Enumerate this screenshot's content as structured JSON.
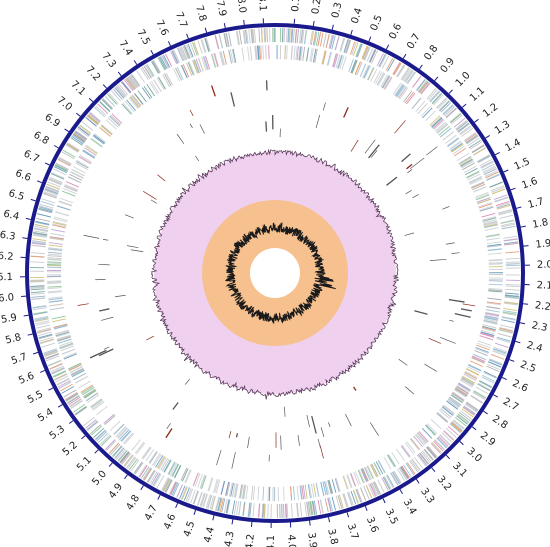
{
  "genome_map": {
    "scale_labels": [
      "0.1",
      "0.2",
      "0.3",
      "0.4",
      "0.5",
      "0.6",
      "0.7",
      "0.8",
      "0.9",
      "1.0",
      "1.1",
      "1.2",
      "1.3",
      "1.4",
      "1.5",
      "1.6",
      "1.7",
      "1.8",
      "1.9",
      "2.0",
      "2.1",
      "2.2",
      "2.3",
      "2.4",
      "2.5",
      "2.6",
      "2.7",
      "2.8",
      "2.9",
      "3.0",
      "3.1",
      "3.2",
      "3.3",
      "3.4",
      "3.5",
      "3.6",
      "3.7",
      "3.8",
      "3.9",
      "4.0",
      "4.1",
      "4.2",
      "4.3",
      "4.4",
      "4.5",
      "4.6",
      "4.7",
      "4.8",
      "4.9",
      "5.0",
      "5.1",
      "5.2",
      "5.3",
      "5.4",
      "5.5",
      "5.6",
      "5.7",
      "5.8",
      "5.9",
      "6.0",
      "6.1",
      "6.2",
      "6.3",
      "6.4",
      "6.5",
      "6.6",
      "6.7",
      "6.8",
      "6.9",
      "7.0",
      "7.1",
      "7.2",
      "7.3",
      "7.4",
      "7.5",
      "7.6",
      "7.7",
      "7.8",
      "7.9",
      "8.0",
      "8.1"
    ],
    "genome_length_mb": 8.16,
    "colors": {
      "backbone": "#1a1a8c",
      "gc_content_band": "#f0d0ef",
      "gc_skew_band": "#f6c08f",
      "trace": "#1a1a1a",
      "rna": "#8b2a1a",
      "feature_palette": [
        "#9fb3c8",
        "#7fb6d6",
        "#b0b0b0",
        "#c7a4d8",
        "#8fc99a",
        "#e5a07a",
        "#6c9ec2",
        "#d3c27a",
        "#a3c5d9",
        "#c9c9c9",
        "#e08fb8",
        "#79a9a0"
      ]
    }
  }
}
